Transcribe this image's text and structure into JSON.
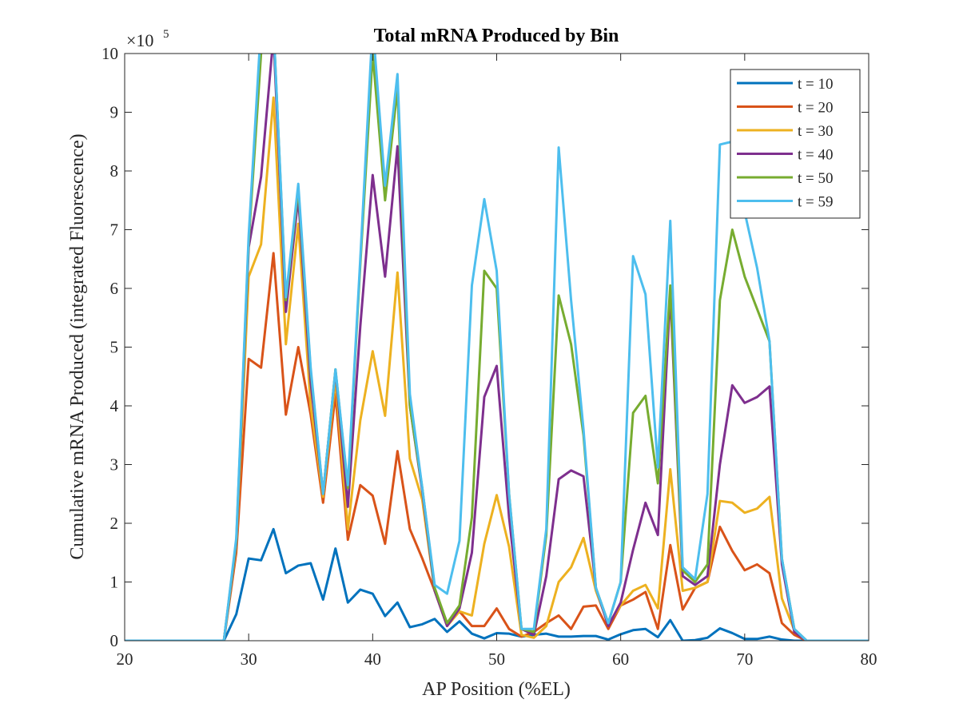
{
  "chart_data": {
    "type": "line",
    "title": "Total mRNA Produced by Bin",
    "xlabel": "AP Position (%EL)",
    "ylabel": "Cumulative mRNA Produced (integrated Fluorescence)",
    "y_exponent": "×10",
    "y_exponent_power": "5",
    "xlim": [
      20,
      80
    ],
    "ylim": [
      0,
      10
    ],
    "x_ticks": [
      20,
      30,
      40,
      50,
      60,
      70,
      80
    ],
    "y_ticks": [
      0,
      1,
      2,
      3,
      4,
      5,
      6,
      7,
      8,
      9,
      10
    ],
    "grid": false,
    "legend_position": "top-right",
    "x": [
      20,
      21,
      22,
      23,
      24,
      25,
      26,
      27,
      28,
      29,
      30,
      31,
      32,
      33,
      34,
      35,
      36,
      37,
      38,
      39,
      40,
      41,
      42,
      43,
      44,
      45,
      46,
      47,
      48,
      49,
      50,
      51,
      52,
      53,
      54,
      55,
      56,
      57,
      58,
      59,
      60,
      61,
      62,
      63,
      64,
      65,
      66,
      67,
      68,
      69,
      70,
      71,
      72,
      73,
      74,
      75,
      76,
      77,
      78,
      79,
      80
    ],
    "series": [
      {
        "name": "t = 10",
        "color": "#0072BD",
        "values": [
          0,
          0,
          0,
          0,
          0,
          0,
          0,
          0,
          0,
          0.45,
          1.4,
          1.37,
          1.9,
          1.15,
          1.28,
          1.32,
          0.7,
          1.57,
          0.65,
          0.87,
          0.8,
          0.42,
          0.65,
          0.23,
          0.28,
          0.37,
          0.15,
          0.33,
          0.12,
          0.04,
          0.13,
          0.12,
          0.07,
          0.1,
          0.12,
          0.07,
          0.07,
          0.08,
          0.08,
          0.02,
          0.11,
          0.18,
          0.2,
          0.06,
          0.35,
          0,
          0.01,
          0.05,
          0.21,
          0.13,
          0.03,
          0.03,
          0.07,
          0.02,
          0,
          0,
          0,
          0,
          0,
          0,
          0
        ]
      },
      {
        "name": "t = 20",
        "color": "#D95319",
        "values": [
          0,
          0,
          0,
          0,
          0,
          0,
          0,
          0,
          0,
          1.5,
          4.8,
          4.65,
          6.6,
          3.85,
          5,
          3.85,
          2.35,
          4.2,
          1.72,
          2.65,
          2.47,
          1.65,
          3.23,
          1.9,
          1.4,
          0.85,
          0.3,
          0.5,
          0.25,
          0.25,
          0.55,
          0.2,
          0.07,
          0.15,
          0.3,
          0.43,
          0.2,
          0.58,
          0.6,
          0.2,
          0.6,
          0.7,
          0.83,
          0.2,
          1.63,
          0.53,
          0.9,
          1,
          1.94,
          1.53,
          1.2,
          1.3,
          1.15,
          0.3,
          0.1,
          0,
          0,
          0,
          0,
          0,
          0
        ]
      },
      {
        "name": "t = 30",
        "color": "#EDB120",
        "values": [
          0,
          0,
          0,
          0,
          0,
          0,
          0,
          0,
          0,
          1.6,
          6.2,
          6.75,
          9.25,
          5.05,
          7.1,
          4,
          2.45,
          4.45,
          1.9,
          3.75,
          4.93,
          3.83,
          6.27,
          3.1,
          2.4,
          0.85,
          0.25,
          0.5,
          0.43,
          1.65,
          2.48,
          1.6,
          0.1,
          0.05,
          0.25,
          1,
          1.25,
          1.75,
          0.85,
          0.28,
          0.6,
          0.85,
          0.95,
          0.55,
          2.92,
          0.85,
          0.9,
          1,
          2.38,
          2.35,
          2.18,
          2.25,
          2.45,
          0.72,
          0.18,
          0,
          0,
          0,
          0,
          0,
          0
        ]
      },
      {
        "name": "t = 40",
        "color": "#7E2F8E",
        "values": [
          0,
          0,
          0,
          0,
          0,
          0,
          0,
          0,
          0,
          1.65,
          6.7,
          7.9,
          10.3,
          5.6,
          7.55,
          4.4,
          2.5,
          4.6,
          2.28,
          5.35,
          7.93,
          6.2,
          8.42,
          4,
          2.55,
          0.85,
          0.25,
          0.55,
          1.5,
          4.15,
          4.68,
          2.1,
          0.2,
          0.1,
          1.1,
          2.75,
          2.9,
          2.8,
          0.9,
          0.25,
          0.65,
          1.55,
          2.35,
          1.8,
          5.92,
          1.1,
          0.95,
          1.1,
          3,
          4.35,
          4.05,
          4.15,
          4.33,
          1.3,
          0.15,
          0,
          0,
          0,
          0,
          0,
          0
        ]
      },
      {
        "name": "t = 50",
        "color": "#77AC30",
        "values": [
          0,
          0,
          0,
          0,
          0,
          0,
          0,
          0,
          0,
          1.7,
          6.8,
          10,
          10.5,
          5.8,
          7.7,
          4.6,
          2.5,
          4.62,
          2.6,
          6.4,
          10,
          7.5,
          9.4,
          4,
          2.6,
          0.9,
          0.3,
          0.6,
          2.1,
          6.3,
          6,
          2.5,
          0.2,
          0.15,
          1.8,
          5.88,
          5.05,
          3.5,
          0.9,
          0.3,
          1,
          3.88,
          4.17,
          2.68,
          6.05,
          1.2,
          1,
          1.3,
          5.8,
          7,
          6.2,
          5.65,
          5.1,
          1.4,
          0.2,
          0,
          0,
          0,
          0,
          0,
          0
        ]
      },
      {
        "name": "t = 59",
        "color": "#4DBEEE",
        "values": [
          0,
          0,
          0,
          0,
          0,
          0,
          0,
          0,
          0,
          1.75,
          6.9,
          10.5,
          10.5,
          5.85,
          7.78,
          4.65,
          2.5,
          4.62,
          2.65,
          6.5,
          10.5,
          7.75,
          9.65,
          4.2,
          2.6,
          0.95,
          0.8,
          1.7,
          6.05,
          7.52,
          6.3,
          2.5,
          0.2,
          0.2,
          1.9,
          8.4,
          5.8,
          3.6,
          0.9,
          0.3,
          1,
          6.55,
          5.9,
          2.95,
          7.15,
          1.25,
          1.05,
          2.5,
          8.45,
          8.5,
          7.3,
          6.35,
          5.1,
          1.4,
          0.2,
          0,
          0,
          0,
          0,
          0,
          0
        ]
      }
    ]
  }
}
